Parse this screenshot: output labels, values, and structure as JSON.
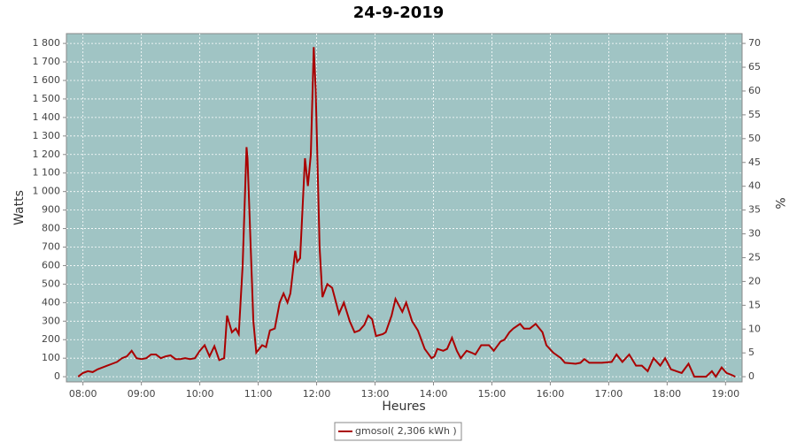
{
  "chart_data": {
    "type": "line",
    "title": "24-9-2019",
    "x_label": "Heures",
    "y_label": "Watts",
    "y2_label": "%",
    "x": [
      "07:55",
      "08:00",
      "08:05",
      "08:10",
      "08:15",
      "08:20",
      "08:25",
      "08:30",
      "08:35",
      "08:40",
      "08:45",
      "08:50",
      "08:55",
      "09:00",
      "09:05",
      "09:10",
      "09:15",
      "09:20",
      "09:25",
      "09:30",
      "09:35",
      "09:40",
      "09:45",
      "09:50",
      "09:55",
      "10:00",
      "10:05",
      "10:10",
      "10:15",
      "10:20",
      "10:25",
      "10:28",
      "10:33",
      "10:37",
      "10:40",
      "10:44",
      "10:48",
      "10:49",
      "10:55",
      "10:58",
      "11:04",
      "11:08",
      "11:12",
      "11:17",
      "11:22",
      "11:26",
      "11:30",
      "11:33",
      "11:38",
      "11:40",
      "11:43",
      "11:48",
      "11:51",
      "11:54",
      "11:57",
      "11:59",
      "12:03",
      "12:06",
      "12:11",
      "12:16",
      "12:20",
      "12:23",
      "12:28",
      "12:34",
      "12:39",
      "12:44",
      "12:49",
      "12:53",
      "12:57",
      "13:01",
      "13:08",
      "13:11",
      "13:17",
      "13:21",
      "13:28",
      "13:32",
      "13:38",
      "13:44",
      "13:51",
      "13:58",
      "14:01",
      "14:04",
      "14:10",
      "14:14",
      "14:19",
      "14:24",
      "14:28",
      "14:34",
      "14:39",
      "14:43",
      "14:49",
      "14:57",
      "15:02",
      "15:09",
      "15:13",
      "15:18",
      "15:22",
      "15:29",
      "15:33",
      "15:39",
      "15:45",
      "15:52",
      "15:56",
      "16:03",
      "16:11",
      "16:15",
      "16:26",
      "16:31",
      "16:35",
      "16:40",
      "16:53",
      "17:03",
      "17:08",
      "17:14",
      "17:21",
      "17:28",
      "17:34",
      "17:40",
      "17:46",
      "17:53",
      "17:58",
      "18:04",
      "18:15",
      "18:22",
      "18:28",
      "18:40",
      "18:46",
      "18:50",
      "18:56",
      "19:01",
      "19:06",
      "19:10"
    ],
    "series": [
      {
        "name": "gmosol( 2,306 kWh )",
        "color": "#aa0000",
        "values": [
          0,
          20,
          30,
          25,
          40,
          50,
          60,
          70,
          80,
          100,
          110,
          140,
          100,
          95,
          100,
          120,
          120,
          100,
          110,
          115,
          95,
          95,
          100,
          95,
          100,
          140,
          170,
          110,
          165,
          90,
          100,
          330,
          240,
          260,
          230,
          600,
          1240,
          1180,
          300,
          130,
          170,
          160,
          250,
          260,
          400,
          450,
          400,
          450,
          680,
          620,
          640,
          1180,
          1030,
          1200,
          1780,
          1550,
          700,
          430,
          500,
          480,
          400,
          340,
          400,
          300,
          240,
          250,
          280,
          330,
          310,
          220,
          230,
          240,
          330,
          420,
          350,
          400,
          300,
          250,
          150,
          100,
          110,
          150,
          140,
          150,
          210,
          140,
          100,
          140,
          130,
          120,
          170,
          170,
          140,
          190,
          200,
          240,
          260,
          285,
          260,
          260,
          285,
          240,
          170,
          130,
          100,
          75,
          70,
          75,
          95,
          75,
          75,
          80,
          120,
          80,
          120,
          60,
          60,
          30,
          100,
          60,
          100,
          40,
          20,
          70,
          0,
          0,
          30,
          0,
          50,
          20,
          10,
          0
        ]
      }
    ],
    "xlim": [
      "07:43",
      "19:17"
    ],
    "xticks": [
      "08:00",
      "09:00",
      "10:00",
      "11:00",
      "12:00",
      "13:00",
      "14:00",
      "15:00",
      "16:00",
      "17:00",
      "18:00",
      "19:00"
    ],
    "ylim": [
      -28,
      1853
    ],
    "yticks": [
      0,
      100,
      200,
      300,
      400,
      500,
      600,
      700,
      800,
      900,
      {
        "value": 1000,
        "label": "1 000"
      },
      {
        "value": 1100,
        "label": "1 100"
      },
      {
        "value": 1200,
        "label": "1 200"
      },
      {
        "value": 1300,
        "label": "1 300"
      },
      {
        "value": 1400,
        "label": "1 400"
      },
      {
        "value": 1500,
        "label": "1 500"
      },
      {
        "value": 1600,
        "label": "1 600"
      },
      {
        "value": 1700,
        "label": "1 700"
      },
      {
        "value": 1800,
        "label": "1 800"
      }
    ],
    "y2lim": [
      -1.09,
      72.06
    ],
    "y2ticks": [
      0,
      5,
      10,
      15,
      20,
      25,
      30,
      35,
      40,
      45,
      50,
      55,
      60,
      65,
      70
    ],
    "grid": true,
    "legend": "bottom",
    "plot_background": "#a0c4c4"
  }
}
